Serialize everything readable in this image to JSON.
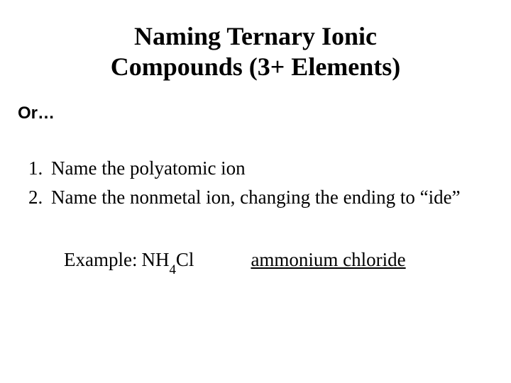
{
  "title_line1": "Naming Ternary Ionic",
  "title_line2": "Compounds (3+ Elements)",
  "subtitle": "Or…",
  "list": {
    "item1_num": "1.",
    "item1_text": "Name the polyatomic ion",
    "item2_num": "2.",
    "item2_text": "Name the nonmetal ion, changing the ending to “ide”"
  },
  "example": {
    "label": "Example:",
    "formula_part1": "NH",
    "formula_sub": "4",
    "formula_part2": "Cl",
    "answer": "ammonium chloride"
  },
  "colors": {
    "background": "#ffffff",
    "text": "#000000"
  },
  "fonts": {
    "title_size": 36,
    "body_size": 27,
    "subtitle_size": 24
  }
}
